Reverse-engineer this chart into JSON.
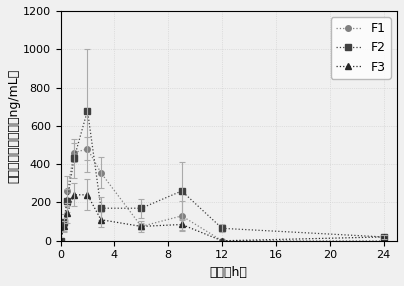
{
  "title": "",
  "xlabel": "时间（h）",
  "ylabel": "紫杉醇血浆中浓度（ng/mL）",
  "xlim": [
    0,
    25
  ],
  "ylim": [
    0,
    1200
  ],
  "xticks": [
    0,
    4,
    8,
    12,
    16,
    20,
    24
  ],
  "yticks": [
    0,
    200,
    400,
    600,
    800,
    1000,
    1200
  ],
  "F1": {
    "x": [
      0,
      0.25,
      0.5,
      1.0,
      2.0,
      3.0,
      6.0,
      9.0,
      12.0,
      24.0
    ],
    "y": [
      0,
      80,
      260,
      460,
      480,
      355,
      75,
      130,
      0,
      0
    ],
    "yerr": [
      0,
      30,
      80,
      50,
      60,
      80,
      30,
      80,
      0,
      0
    ],
    "color": "#808080",
    "marker": "o",
    "label": "F1"
  },
  "F2": {
    "x": [
      0,
      0.25,
      0.5,
      1.0,
      2.0,
      3.0,
      6.0,
      9.0,
      12.0,
      24.0
    ],
    "y": [
      0,
      100,
      210,
      430,
      680,
      170,
      170,
      260,
      65,
      20
    ],
    "yerr": [
      0,
      40,
      60,
      100,
      320,
      60,
      50,
      150,
      20,
      10
    ],
    "color": "#404040",
    "marker": "s",
    "label": "F2"
  },
  "F3": {
    "x": [
      0,
      0.25,
      0.5,
      1.0,
      2.0,
      3.0,
      6.0,
      9.0,
      12.0,
      24.0
    ],
    "y": [
      0,
      75,
      145,
      240,
      240,
      110,
      75,
      85,
      0,
      20
    ],
    "yerr": [
      0,
      30,
      50,
      60,
      80,
      40,
      20,
      30,
      0,
      10
    ],
    "color": "#282828",
    "marker": "^",
    "label": "F3"
  },
  "background_color": "#f0f0f0",
  "legend_fontsize": 9,
  "axis_fontsize": 9,
  "tick_fontsize": 8
}
